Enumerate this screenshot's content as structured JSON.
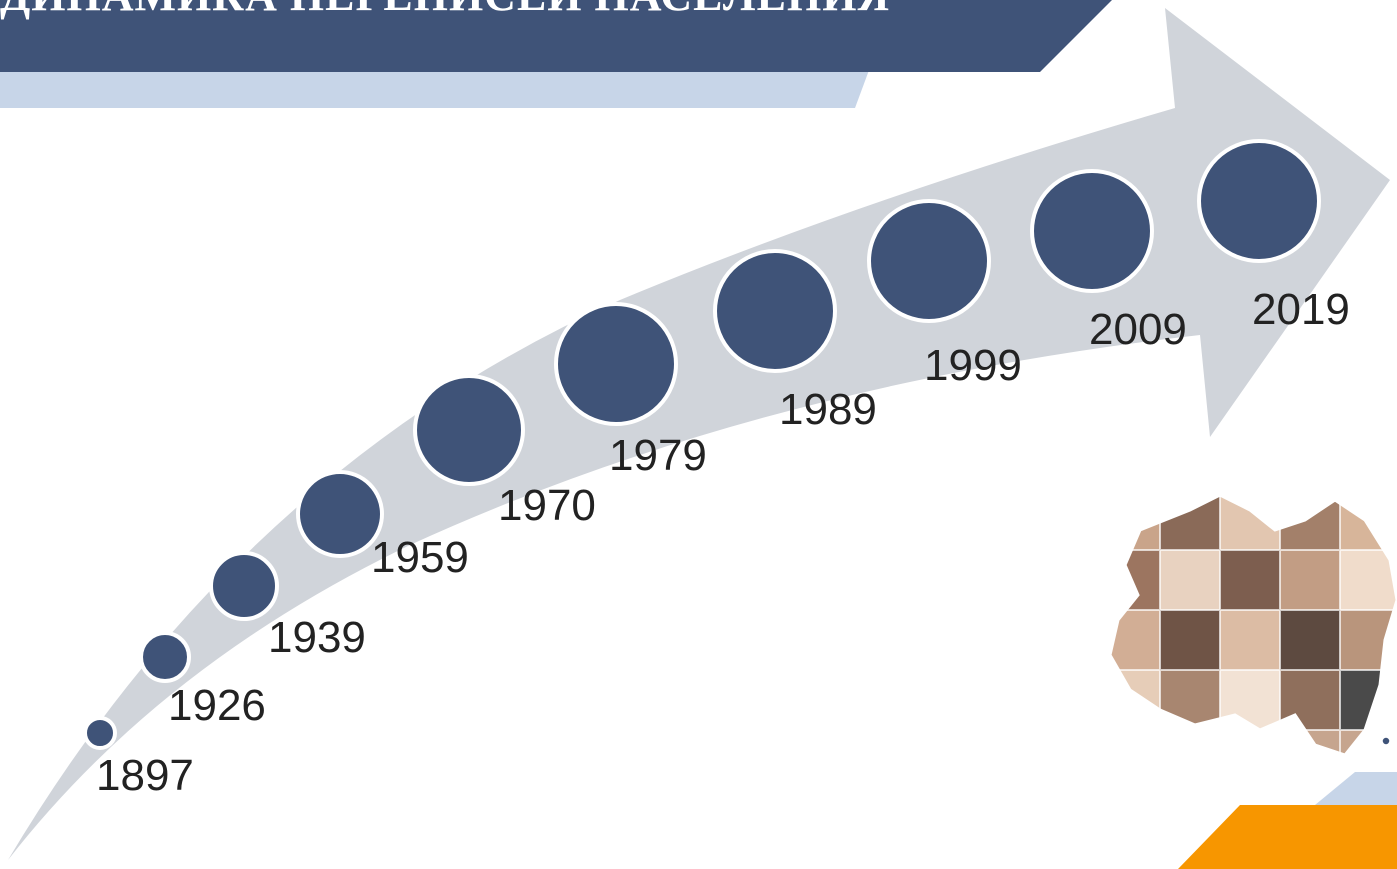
{
  "header": {
    "title": "ДИНАМИКА ПЕРЕПИСЕЙ НАСЕЛЕНИЯ"
  },
  "colors": {
    "navy": "#3f5378",
    "light_blue": "#c7d5e8",
    "arrow_gray": "#d0d4da",
    "orange": "#f79600",
    "text": "#222222"
  },
  "timeline": {
    "years": [
      "1897",
      "1926",
      "1939",
      "1959",
      "1970",
      "1979",
      "1989",
      "1999",
      "2009",
      "2019"
    ]
  },
  "decorations": {
    "map_image": "kazakhstan-map-collage-of-faces",
    "bottom_bar": "orange-accent-bar"
  }
}
